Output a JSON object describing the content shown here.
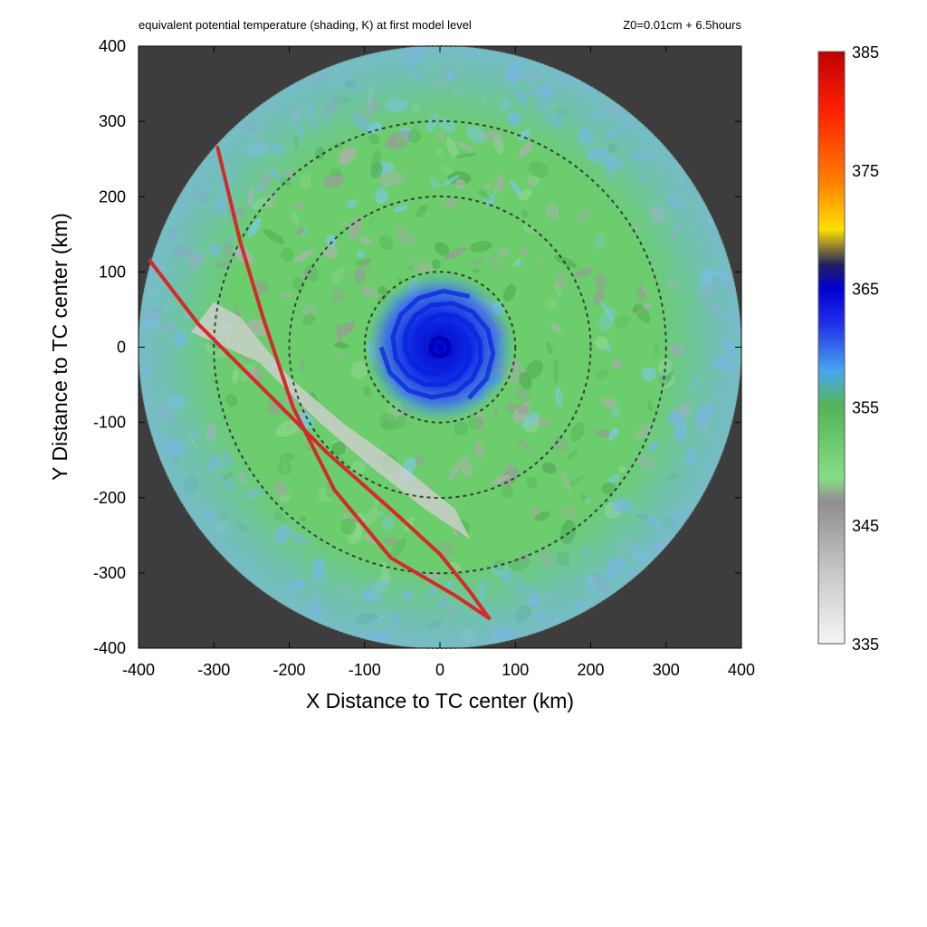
{
  "chart_data": {
    "type": "heatmap",
    "title": "equivalent potential temperature (shading, K) at first model level",
    "subtitle": "Z0=0.01cm  + 6.5hours",
    "xlabel": "X Distance to TC center (km)",
    "ylabel": "Y Distance to TC center (km)",
    "xlim": [
      -400,
      400
    ],
    "ylim": [
      -400,
      400
    ],
    "xticks": [
      -400,
      -300,
      -200,
      -100,
      0,
      100,
      200,
      300,
      400
    ],
    "yticks": [
      -400,
      -300,
      -200,
      -100,
      0,
      100,
      200,
      300,
      400
    ],
    "xtick_labels": [
      "-400",
      "-300",
      "-200",
      "-100",
      "0",
      "100",
      "200",
      "300",
      "400"
    ],
    "ytick_labels": [
      "400",
      "300",
      "200",
      "100",
      "0",
      "-100",
      "-200",
      "-300",
      "-400"
    ],
    "domain_radius_km": 400,
    "range_rings_km": [
      100,
      200,
      300
    ],
    "colorbar": {
      "range": [
        335,
        385
      ],
      "units": "K",
      "ticks": [
        335,
        345,
        355,
        365,
        375,
        385
      ],
      "tick_labels": [
        "385",
        "375",
        "365",
        "355",
        "345",
        "335"
      ],
      "stops": [
        {
          "value": 335,
          "color": "#f5f5f5"
        },
        {
          "value": 341,
          "color": "#c8c8c8"
        },
        {
          "value": 347,
          "color": "#8e8e8e"
        },
        {
          "value": 349,
          "color": "#86de86"
        },
        {
          "value": 355,
          "color": "#55b455"
        },
        {
          "value": 358,
          "color": "#4aa6ee"
        },
        {
          "value": 362,
          "color": "#2030e8"
        },
        {
          "value": 365,
          "color": "#0000d2"
        },
        {
          "value": 367,
          "color": "#202060"
        },
        {
          "value": 370,
          "color": "#ffe000"
        },
        {
          "value": 374,
          "color": "#ff8000"
        },
        {
          "value": 380,
          "color": "#ff2000"
        },
        {
          "value": 385,
          "color": "#c00000"
        }
      ]
    },
    "tracks": [
      {
        "points": [
          [
            -295,
            265
          ],
          [
            -265,
            140
          ],
          [
            -235,
            40
          ],
          [
            -195,
            -80
          ],
          [
            -140,
            -190
          ],
          [
            -65,
            -280
          ],
          [
            20,
            -330
          ],
          [
            65,
            -360
          ]
        ]
      },
      {
        "points": [
          [
            -385,
            115
          ],
          [
            -320,
            30
          ],
          [
            -240,
            -50
          ],
          [
            -150,
            -140
          ],
          [
            -60,
            -220
          ],
          [
            0,
            -275
          ],
          [
            40,
            -325
          ],
          [
            65,
            -360
          ]
        ]
      }
    ],
    "colors": {
      "background_outside_domain": "#3d3d3d",
      "domain_base": "#6ccd6c",
      "track": "#d42a2a",
      "ring": "#2a2a2a"
    }
  }
}
